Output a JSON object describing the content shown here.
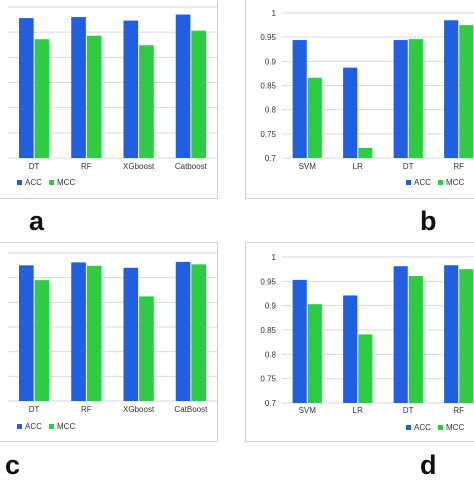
{
  "colors": {
    "acc": "#1f5fe0",
    "mcc": "#2ecc40",
    "grid": "#d9d9d9"
  },
  "panel_labels": {
    "a": "a",
    "b": "b",
    "c": "c",
    "d": "d"
  },
  "chart_data": [
    {
      "id": "a",
      "type": "bar",
      "categories": [
        "DT",
        "RF",
        "XGboost",
        "Catboost"
      ],
      "ylim": [
        0.7,
        1.0
      ],
      "show_y_ticks": false,
      "y_ticks": [],
      "series": [
        {
          "name": "ACC",
          "values": [
            0.978,
            0.98,
            0.973,
            0.985
          ]
        },
        {
          "name": "MCC",
          "values": [
            0.936,
            0.943,
            0.924,
            0.953
          ]
        }
      ],
      "legend": "bottom",
      "grid": true
    },
    {
      "id": "b",
      "type": "bar",
      "categories": [
        "SVM",
        "LR",
        "DT",
        "RF"
      ],
      "ylim": [
        0.7,
        1.0
      ],
      "show_y_ticks": true,
      "y_ticks": [
        "0.7",
        "0.75",
        "0.8",
        "0.85",
        "0.9",
        "0.95",
        "1"
      ],
      "series": [
        {
          "name": "ACC",
          "values": [
            0.944,
            0.887,
            0.944,
            0.985
          ]
        },
        {
          "name": "MCC",
          "values": [
            0.866,
            0.721,
            0.946,
            0.975
          ]
        }
      ],
      "legend": "bottom",
      "grid": true
    },
    {
      "id": "c",
      "type": "bar",
      "categories": [
        "DT",
        "RF",
        "XGboost",
        "CatBoost"
      ],
      "ylim": [
        0.7,
        1.0
      ],
      "show_y_ticks": false,
      "y_ticks": [],
      "series": [
        {
          "name": "ACC",
          "values": [
            0.975,
            0.981,
            0.97,
            0.982
          ]
        },
        {
          "name": "MCC",
          "values": [
            0.945,
            0.974,
            0.912,
            0.977
          ]
        }
      ],
      "legend": "bottom",
      "grid": true
    },
    {
      "id": "d",
      "type": "bar",
      "categories": [
        "SVM",
        "LR",
        "DT",
        "RF"
      ],
      "ylim": [
        0.7,
        1.0
      ],
      "show_y_ticks": true,
      "y_ticks": [
        "0.7",
        "0.75",
        "0.8",
        "0.85",
        "0.9",
        "0.95",
        "1"
      ],
      "series": [
        {
          "name": "ACC",
          "values": [
            0.953,
            0.921,
            0.981,
            0.983
          ]
        },
        {
          "name": "MCC",
          "values": [
            0.903,
            0.841,
            0.961,
            0.975
          ]
        }
      ],
      "legend": "bottom",
      "grid": true
    }
  ]
}
